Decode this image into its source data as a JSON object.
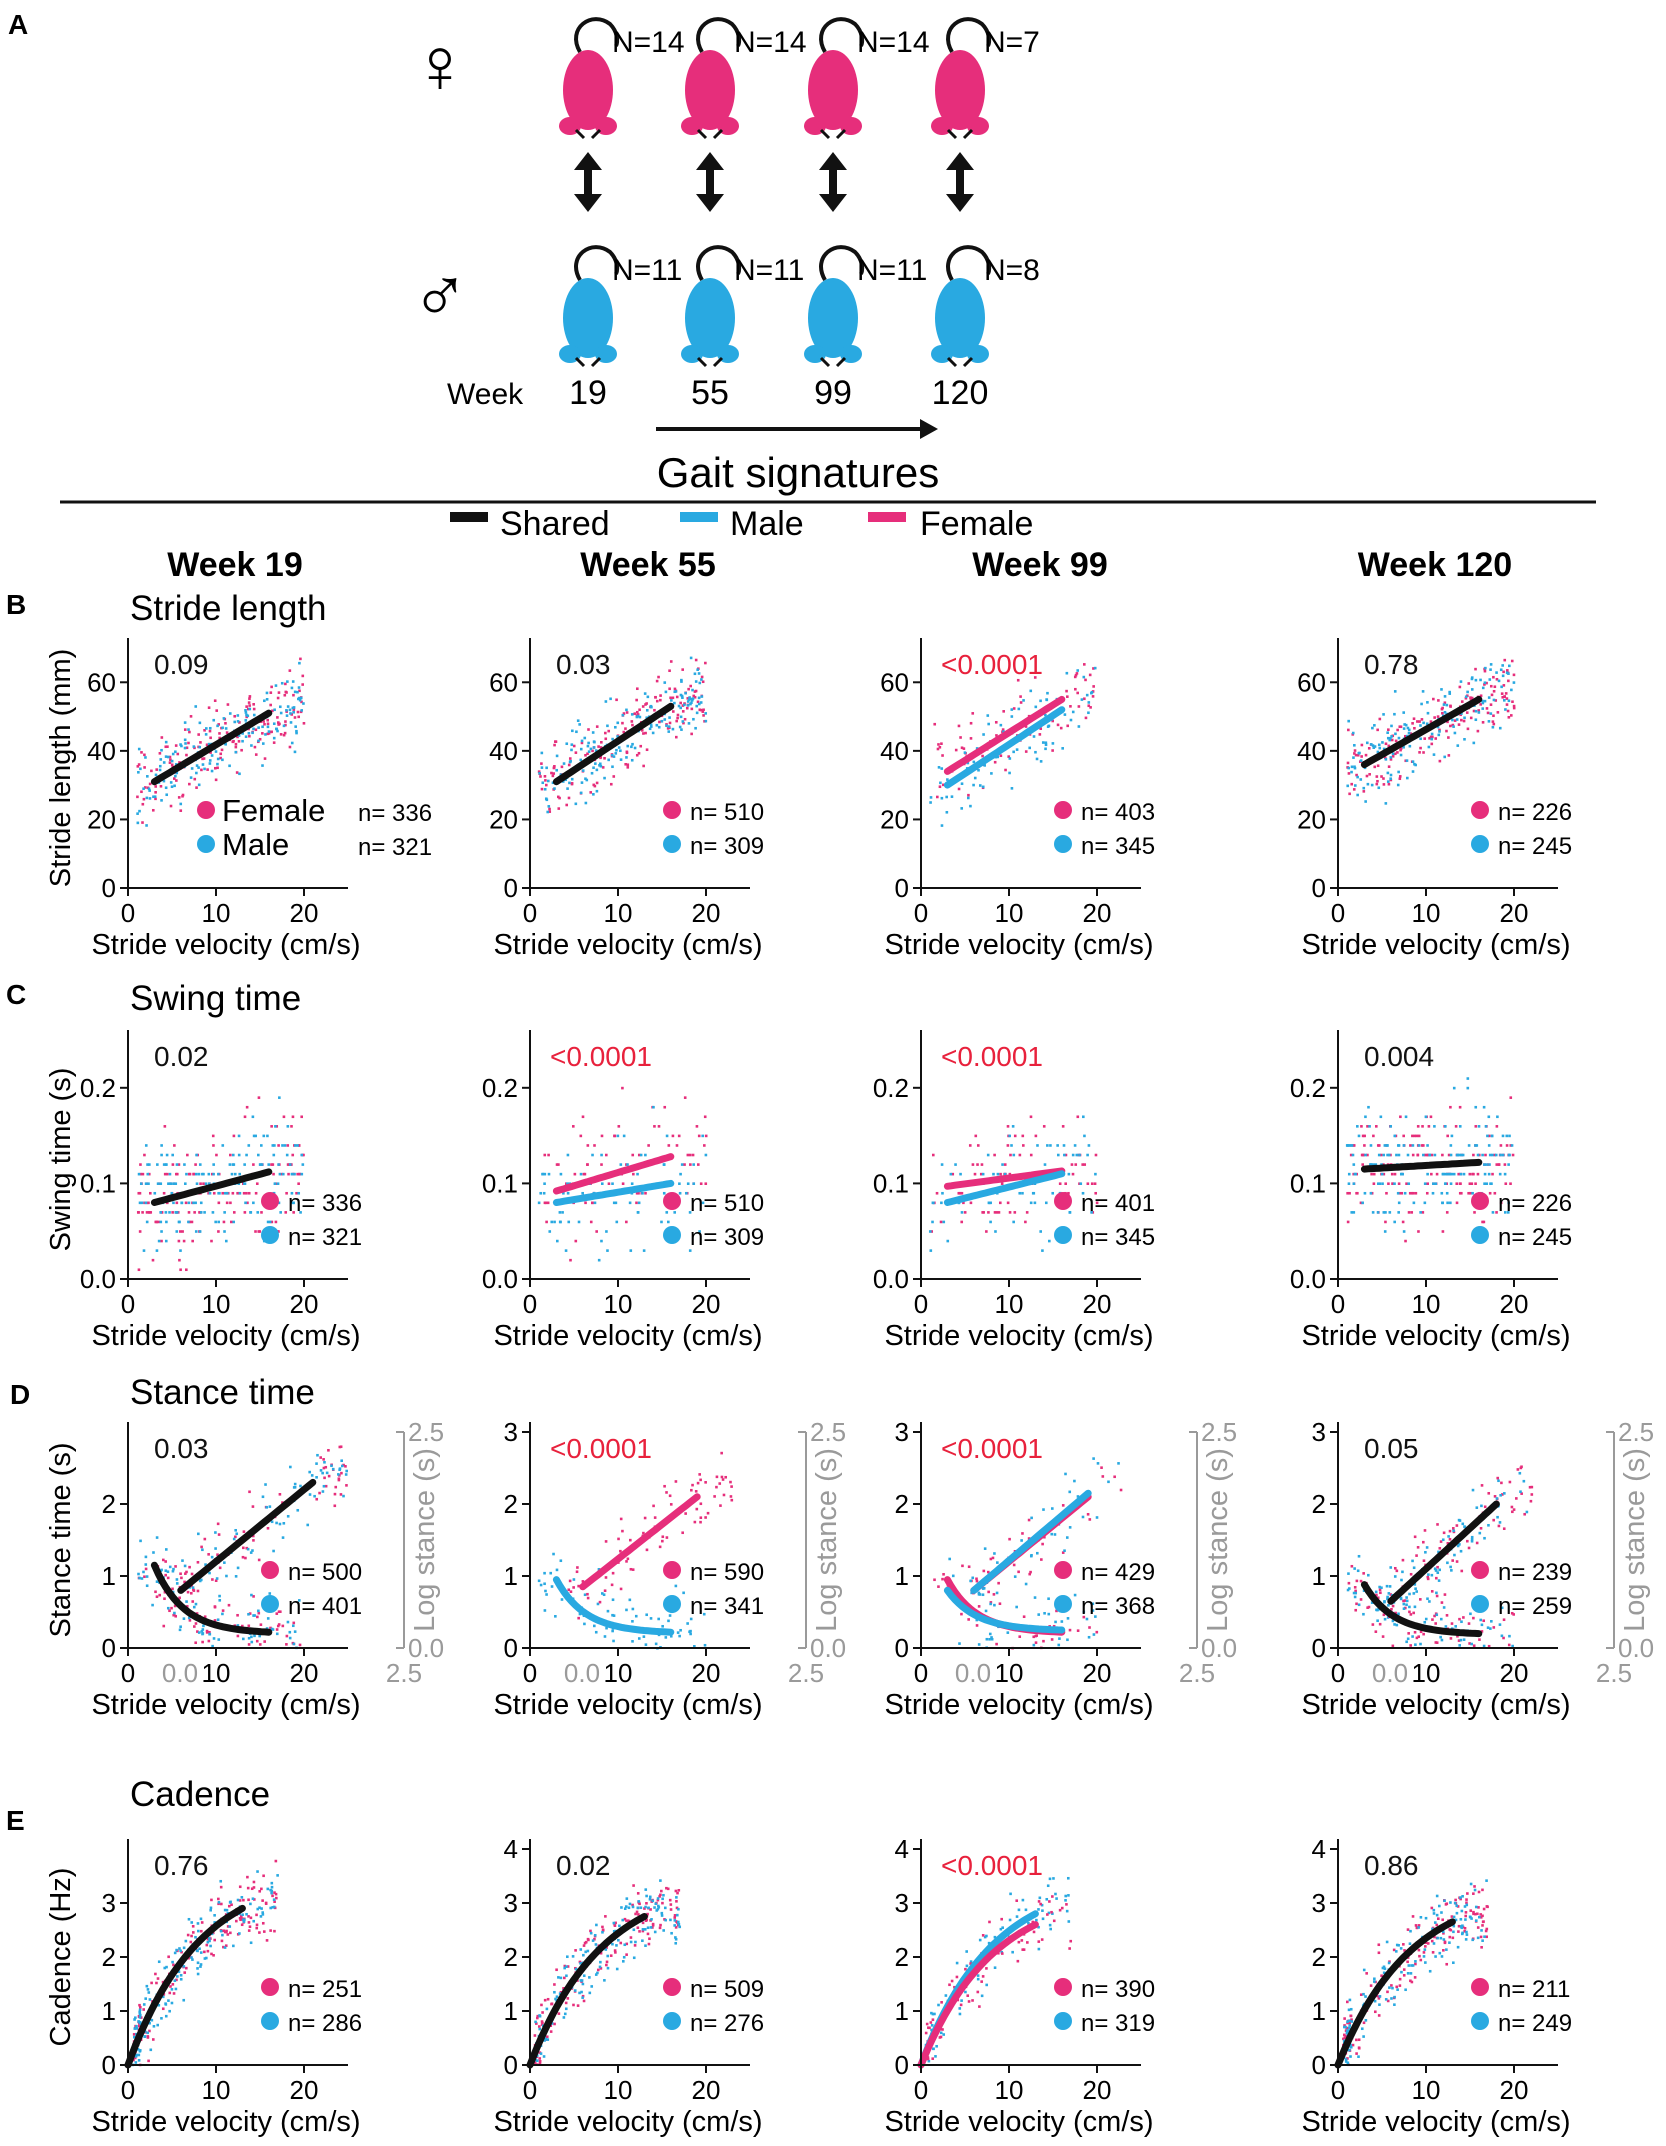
{
  "colors": {
    "female": "#e62e7b",
    "male": "#29a9e1",
    "shared": "#111111",
    "pvalue_sig": "#e8213c",
    "pvalue_ns": "#111111",
    "right_axis": "#9a9a9a"
  },
  "panel_a": {
    "label": "A",
    "female_symbol": "♀",
    "male_symbol": "♂",
    "female_n": [
      "N=14",
      "N=14",
      "N=14",
      "N=7"
    ],
    "male_n": [
      "N=11",
      "N=11",
      "N=11",
      "N=8"
    ],
    "week_label": "Week",
    "weeks": [
      "19",
      "55",
      "99",
      "120"
    ],
    "arrow_caption": "Gait signatures"
  },
  "legend": {
    "items": [
      {
        "label": "Shared",
        "color_key": "shared"
      },
      {
        "label": "Male",
        "color_key": "male"
      },
      {
        "label": "Female",
        "color_key": "female"
      }
    ]
  },
  "column_titles": [
    "Week 19",
    "Week 55",
    "Week 99",
    "Week 120"
  ],
  "x_axis_label": "Stride velocity (cm/s)",
  "legend_female_text": "Female",
  "legend_male_text": "Male",
  "chart_data": [
    {
      "type": "scatter",
      "row": "B",
      "title": "Stride length",
      "ylabel": "Stride length (mm)",
      "xlim": [
        0,
        25
      ],
      "ylim": [
        0,
        70
      ],
      "xticks": [
        0,
        10,
        20
      ],
      "yticks": [
        0,
        20,
        40,
        60
      ],
      "panels": [
        {
          "week": "Week 19",
          "p": "0.09",
          "sig": false,
          "n_female": "n= 336",
          "n_male": "n= 321",
          "long_legend": true,
          "fits": [
            {
              "series": "shared",
              "x": [
                3,
                16
              ],
              "y": [
                31,
                51
              ]
            }
          ]
        },
        {
          "week": "Week 55",
          "p": "0.03",
          "sig": false,
          "n_female": "n= 510",
          "n_male": "n= 309",
          "fits": [
            {
              "series": "shared",
              "x": [
                3,
                16
              ],
              "y": [
                31,
                53
              ]
            }
          ]
        },
        {
          "week": "Week 99",
          "p": "<0.0001",
          "sig": true,
          "n_female": "n= 403",
          "n_male": "n= 345",
          "fits": [
            {
              "series": "female",
              "x": [
                3,
                16
              ],
              "y": [
                34,
                55
              ]
            },
            {
              "series": "male",
              "x": [
                3,
                16
              ],
              "y": [
                30,
                52
              ]
            }
          ]
        },
        {
          "week": "Week 120",
          "p": "0.78",
          "sig": false,
          "n_female": "n= 226",
          "n_male": "n= 245",
          "fits": [
            {
              "series": "shared",
              "x": [
                3,
                16
              ],
              "y": [
                36,
                55
              ]
            }
          ]
        }
      ]
    },
    {
      "type": "scatter",
      "row": "C",
      "title": "Swing time",
      "ylabel": "Swing time (s)",
      "xlim": [
        0,
        25
      ],
      "ylim": [
        0,
        0.25
      ],
      "xticks": [
        0,
        10,
        20
      ],
      "yticks": [
        0.0,
        0.1,
        0.2
      ],
      "ytick_labels": [
        "0.0",
        "0.1",
        "0.2"
      ],
      "panels": [
        {
          "week": "Week 19",
          "p": "0.02",
          "sig": false,
          "n_female": "n= 336",
          "n_male": "n= 321",
          "fits": [
            {
              "series": "shared",
              "x": [
                3,
                16
              ],
              "y": [
                0.08,
                0.112
              ]
            }
          ]
        },
        {
          "week": "Week 55",
          "p": "<0.0001",
          "sig": true,
          "n_female": "n= 510",
          "n_male": "n= 309",
          "fits": [
            {
              "series": "female",
              "x": [
                3,
                16
              ],
              "y": [
                0.092,
                0.128
              ]
            },
            {
              "series": "male",
              "x": [
                3,
                16
              ],
              "y": [
                0.08,
                0.1
              ]
            }
          ]
        },
        {
          "week": "Week 99",
          "p": "<0.0001",
          "sig": true,
          "n_female": "n= 401",
          "n_male": "n= 345",
          "fits": [
            {
              "series": "female",
              "x": [
                3,
                16
              ],
              "y": [
                0.097,
                0.113
              ]
            },
            {
              "series": "male",
              "x": [
                3,
                16
              ],
              "y": [
                0.08,
                0.11
              ]
            }
          ]
        },
        {
          "week": "Week 120",
          "p": "0.004",
          "sig": false,
          "n_female": "n= 226",
          "n_male": "n= 245",
          "fits": [
            {
              "series": "shared",
              "x": [
                3,
                16
              ],
              "y": [
                0.115,
                0.122
              ]
            }
          ]
        }
      ]
    },
    {
      "type": "scatter",
      "row": "D",
      "title": "Stance time",
      "ylabel": "Stance time  (s)",
      "y2label": "Log stance  (s)",
      "xlim": [
        0,
        25
      ],
      "ylim": [
        0,
        3
      ],
      "xticks": [
        0,
        10,
        20
      ],
      "yticks": [
        0,
        1,
        2,
        3
      ],
      "x2_ticks": [
        "0.0",
        "2.5"
      ],
      "y2_ticks": [
        "0.0",
        "2.5"
      ],
      "panels": [
        {
          "week": "Week 19",
          "p": "0.03",
          "sig": false,
          "n_female": "n= 500",
          "n_male": "n= 401",
          "hide_top_ytick": true,
          "fits": [
            {
              "series": "shared",
              "curve": "decay",
              "x": [
                3,
                16
              ],
              "y": [
                1.15,
                0.22
              ]
            },
            {
              "series": "shared",
              "x": [
                6,
                21
              ],
              "y": [
                0.8,
                2.3
              ]
            }
          ]
        },
        {
          "week": "Week 55",
          "p": "<0.0001",
          "sig": true,
          "n_female": "n= 590",
          "n_male": "n= 341",
          "fits": [
            {
              "series": "male",
              "curve": "decay",
              "x": [
                3,
                16
              ],
              "y": [
                0.95,
                0.22
              ]
            },
            {
              "series": "female",
              "x": [
                6,
                19
              ],
              "y": [
                0.85,
                2.1
              ]
            }
          ]
        },
        {
          "week": "Week 99",
          "p": "<0.0001",
          "sig": true,
          "n_female": "n= 429",
          "n_male": "n= 368",
          "fits": [
            {
              "series": "female",
              "curve": "decay",
              "x": [
                3,
                16
              ],
              "y": [
                0.95,
                0.22
              ]
            },
            {
              "series": "male",
              "curve": "decay",
              "x": [
                3,
                16
              ],
              "y": [
                0.8,
                0.25
              ]
            },
            {
              "series": "female",
              "x": [
                6,
                19
              ],
              "y": [
                0.8,
                2.1
              ]
            },
            {
              "series": "male",
              "x": [
                6,
                19
              ],
              "y": [
                0.8,
                2.15
              ]
            }
          ]
        },
        {
          "week": "Week 120",
          "p": "0.05",
          "sig": false,
          "n_female": "n= 239",
          "n_male": "n= 259",
          "fits": [
            {
              "series": "shared",
              "curve": "decay",
              "x": [
                3,
                16
              ],
              "y": [
                0.88,
                0.2
              ]
            },
            {
              "series": "shared",
              "x": [
                6,
                18
              ],
              "y": [
                0.65,
                2.0
              ]
            }
          ]
        }
      ]
    },
    {
      "type": "scatter",
      "row": "E",
      "title": "Cadence",
      "ylabel": "Cadence (Hz)",
      "xlim": [
        0,
        25
      ],
      "ylim": [
        0,
        4
      ],
      "xticks": [
        0,
        10,
        20
      ],
      "yticks": [
        0,
        1,
        2,
        3,
        4
      ],
      "panels": [
        {
          "week": "Week 19",
          "p": "0.76",
          "sig": false,
          "n_female": "n= 251",
          "n_male": "n= 286",
          "hide_top_ytick": true,
          "fits": [
            {
              "series": "shared",
              "curve": "sat",
              "x": [
                0,
                13
              ],
              "y": [
                0,
                2.9
              ]
            }
          ]
        },
        {
          "week": "Week 55",
          "p": "0.02",
          "sig": false,
          "n_female": "n= 509",
          "n_male": "n= 276",
          "fits": [
            {
              "series": "shared",
              "curve": "sat",
              "x": [
                0,
                13
              ],
              "y": [
                0,
                2.75
              ]
            }
          ]
        },
        {
          "week": "Week 99",
          "p": "<0.0001",
          "sig": true,
          "n_female": "n= 390",
          "n_male": "n= 319",
          "fits": [
            {
              "series": "male",
              "curve": "sat",
              "x": [
                0,
                13
              ],
              "y": [
                0,
                2.8
              ]
            },
            {
              "series": "female",
              "curve": "sat",
              "x": [
                0,
                13
              ],
              "y": [
                0,
                2.6
              ]
            }
          ]
        },
        {
          "week": "Week 120",
          "p": "0.86",
          "sig": false,
          "n_female": "n= 211",
          "n_male": "n= 249",
          "fits": [
            {
              "series": "shared",
              "curve": "sat",
              "x": [
                0,
                13
              ],
              "y": [
                0,
                2.65
              ]
            }
          ]
        }
      ]
    }
  ]
}
